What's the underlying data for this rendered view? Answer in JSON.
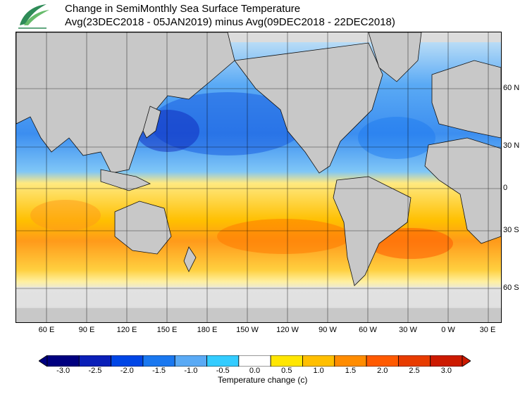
{
  "header": {
    "title": "Change in SemiMonthly Sea Surface Temperature",
    "subtitle": "Avg(23DEC2018 - 05JAN2019) minus Avg(09DEC2018 - 22DEC2018)"
  },
  "map": {
    "projection": "equirectangular",
    "central_longitude": "180",
    "lat_labels": [
      "60 N",
      "30 N",
      "0",
      "30 S",
      "60 S"
    ],
    "lon_labels": [
      "60 E",
      "90 E",
      "120 E",
      "150 E",
      "180 E",
      "150 W",
      "120 W",
      "90 W",
      "60 W",
      "30 W",
      "0 W",
      "30 E"
    ],
    "land_color": "#c8c8c8",
    "ice_color": "#dcdcdc",
    "grid": true
  },
  "legend": {
    "caption": "Temperature change  (c)",
    "ticks": [
      "-3.0",
      "-2.5",
      "-2.0",
      "-1.5",
      "-1.0",
      "-0.5",
      "0.0",
      "0.5",
      "1.0",
      "1.5",
      "2.0",
      "2.5",
      "3.0"
    ],
    "colors": [
      "#000080",
      "#0a1fb8",
      "#0046e6",
      "#1a78f0",
      "#5aaaf5",
      "#33ccff",
      "#ffffff",
      "#ffe600",
      "#ffbf00",
      "#ff8c00",
      "#ff5a00",
      "#e83c00",
      "#cc1a00"
    ]
  }
}
